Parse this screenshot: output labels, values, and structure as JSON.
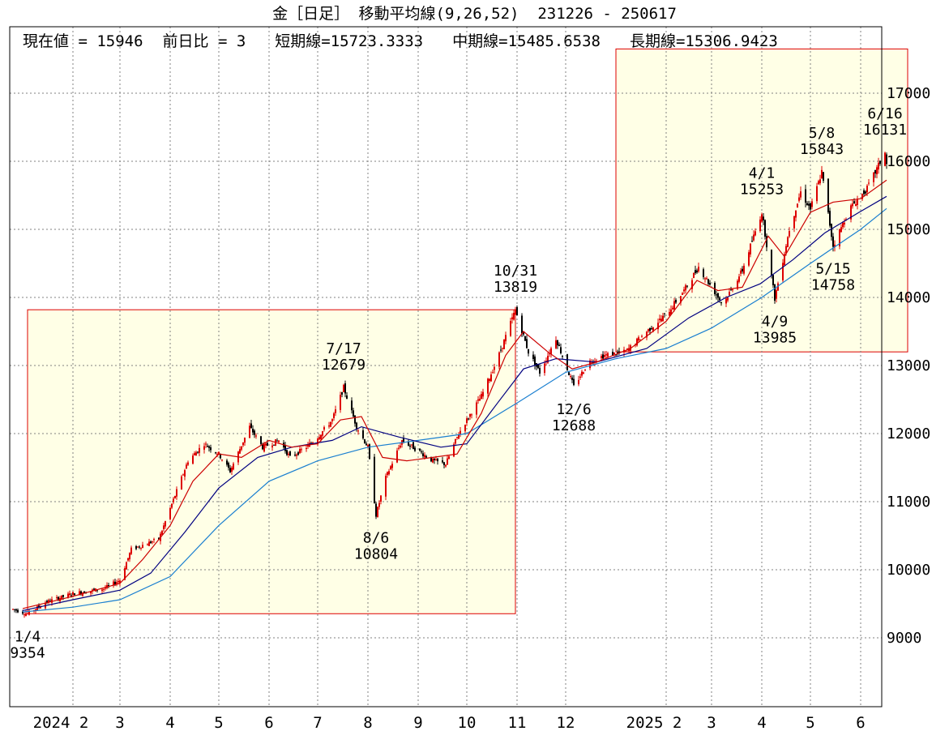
{
  "header": {
    "title": "金［日足］ 移動平均線(9,26,52)  231226 - 250617",
    "current_label": "現在値 = 15946",
    "change_label": "前日比 = 3",
    "short_ma_label": "短期線=15723.3333",
    "mid_ma_label": "中期線=15485.6538",
    "long_ma_label": "長期線=15306.9423"
  },
  "colors": {
    "candle": "#dd0000",
    "short_ma": "#cc0000",
    "mid_ma": "#000080",
    "long_ma": "#1a7fd0",
    "highlight_fill": "#ffffe6",
    "highlight_border": "#dd0000",
    "grid": "#808080"
  },
  "chart_data": {
    "type": "line",
    "subtype": "candlestick-with-moving-averages",
    "ylim": [
      8000,
      17900
    ],
    "y_ticks": [
      9000,
      10000,
      11000,
      12000,
      13000,
      14000,
      15000,
      16000,
      17000
    ],
    "x_ticks": [
      {
        "label": "2024 2",
        "date": "2024-02-01"
      },
      {
        "label": "3",
        "date": "2024-03-01"
      },
      {
        "label": "4",
        "date": "2024-04-01"
      },
      {
        "label": "5",
        "date": "2024-05-01"
      },
      {
        "label": "6",
        "date": "2024-06-01"
      },
      {
        "label": "7",
        "date": "2024-07-01"
      },
      {
        "label": "8",
        "date": "2024-08-01"
      },
      {
        "label": "9",
        "date": "2024-09-01"
      },
      {
        "label": "10",
        "date": "2024-10-01"
      },
      {
        "label": "11",
        "date": "2024-11-01"
      },
      {
        "label": "12",
        "date": "2024-12-01"
      },
      {
        "label": "2025 2",
        "date": "2025-02-01"
      },
      {
        "label": "3",
        "date": "2025-03-01"
      },
      {
        "label": "4",
        "date": "2025-04-01"
      },
      {
        "label": "5",
        "date": "2025-05-01"
      },
      {
        "label": "6",
        "date": "2025-06-01"
      }
    ],
    "price_path": [
      [
        "2023-12-26",
        9420
      ],
      [
        "2024-01-04",
        9354
      ],
      [
        "2024-01-15",
        9520
      ],
      [
        "2024-02-01",
        9650
      ],
      [
        "2024-02-20",
        9720
      ],
      [
        "2024-03-01",
        9850
      ],
      [
        "2024-03-08",
        10300
      ],
      [
        "2024-03-25",
        10450
      ],
      [
        "2024-04-01",
        10900
      ],
      [
        "2024-04-12",
        11600
      ],
      [
        "2024-04-22",
        11850
      ],
      [
        "2024-05-01",
        11700
      ],
      [
        "2024-05-08",
        11450
      ],
      [
        "2024-05-20",
        12100
      ],
      [
        "2024-05-28",
        11800
      ],
      [
        "2024-06-07",
        11900
      ],
      [
        "2024-06-14",
        11650
      ],
      [
        "2024-06-24",
        11800
      ],
      [
        "2024-07-01",
        11950
      ],
      [
        "2024-07-10",
        12200
      ],
      [
        "2024-07-17",
        12679
      ],
      [
        "2024-07-25",
        12100
      ],
      [
        "2024-08-01",
        11800
      ],
      [
        "2024-08-06",
        10804
      ],
      [
        "2024-08-12",
        11350
      ],
      [
        "2024-08-22",
        11900
      ],
      [
        "2024-09-01",
        11750
      ],
      [
        "2024-09-10",
        11600
      ],
      [
        "2024-09-18",
        11550
      ],
      [
        "2024-09-26",
        12000
      ],
      [
        "2024-10-01",
        12200
      ],
      [
        "2024-10-10",
        12550
      ],
      [
        "2024-10-20",
        13100
      ],
      [
        "2024-10-31",
        13819
      ],
      [
        "2024-11-08",
        13200
      ],
      [
        "2024-11-15",
        12900
      ],
      [
        "2024-11-25",
        13400
      ],
      [
        "2024-12-06",
        12688
      ],
      [
        "2024-12-15",
        13050
      ],
      [
        "2024-12-25",
        13150
      ],
      [
        "2025-01-07",
        13200
      ],
      [
        "2025-01-20",
        13500
      ],
      [
        "2025-02-01",
        13750
      ],
      [
        "2025-02-12",
        14100
      ],
      [
        "2025-02-21",
        14450
      ],
      [
        "2025-03-01",
        14150
      ],
      [
        "2025-03-08",
        13900
      ],
      [
        "2025-03-20",
        14400
      ],
      [
        "2025-04-01",
        15253
      ],
      [
        "2025-04-09",
        13985
      ],
      [
        "2025-04-18",
        15000
      ],
      [
        "2025-04-25",
        15550
      ],
      [
        "2025-05-01",
        15300
      ],
      [
        "2025-05-08",
        15843
      ],
      [
        "2025-05-15",
        14758
      ],
      [
        "2025-05-25",
        15300
      ],
      [
        "2025-06-05",
        15600
      ],
      [
        "2025-06-16",
        16131
      ],
      [
        "2025-06-17",
        15946
      ]
    ],
    "short_ma_path": [
      [
        "2024-01-01",
        9430
      ],
      [
        "2024-02-01",
        9610
      ],
      [
        "2024-03-01",
        9800
      ],
      [
        "2024-03-15",
        10150
      ],
      [
        "2024-04-01",
        10650
      ],
      [
        "2024-04-15",
        11300
      ],
      [
        "2024-05-01",
        11700
      ],
      [
        "2024-05-15",
        11650
      ],
      [
        "2024-06-01",
        11900
      ],
      [
        "2024-06-15",
        11800
      ],
      [
        "2024-07-01",
        11850
      ],
      [
        "2024-07-15",
        12200
      ],
      [
        "2024-07-28",
        12250
      ],
      [
        "2024-08-10",
        11650
      ],
      [
        "2024-08-25",
        11600
      ],
      [
        "2024-09-10",
        11650
      ],
      [
        "2024-09-25",
        11700
      ],
      [
        "2024-10-10",
        12300
      ],
      [
        "2024-10-25",
        13150
      ],
      [
        "2024-11-05",
        13500
      ],
      [
        "2024-11-20",
        13200
      ],
      [
        "2024-12-05",
        12950
      ],
      [
        "2024-12-20",
        13050
      ],
      [
        "2025-01-10",
        13250
      ],
      [
        "2025-02-01",
        13650
      ],
      [
        "2025-02-20",
        14250
      ],
      [
        "2025-03-05",
        14100
      ],
      [
        "2025-03-20",
        14150
      ],
      [
        "2025-04-05",
        14900
      ],
      [
        "2025-04-15",
        14600
      ],
      [
        "2025-05-01",
        15250
      ],
      [
        "2025-05-15",
        15400
      ],
      [
        "2025-06-01",
        15450
      ],
      [
        "2025-06-17",
        15723
      ]
    ],
    "mid_ma_path": [
      [
        "2024-01-01",
        9400
      ],
      [
        "2024-02-01",
        9560
      ],
      [
        "2024-03-01",
        9700
      ],
      [
        "2024-03-20",
        9950
      ],
      [
        "2024-04-10",
        10550
      ],
      [
        "2024-05-01",
        11200
      ],
      [
        "2024-05-25",
        11650
      ],
      [
        "2024-06-15",
        11800
      ],
      [
        "2024-07-10",
        11900
      ],
      [
        "2024-07-28",
        12100
      ],
      [
        "2024-08-20",
        11950
      ],
      [
        "2024-09-15",
        11800
      ],
      [
        "2024-10-01",
        11850
      ],
      [
        "2024-10-20",
        12450
      ],
      [
        "2024-11-05",
        12950
      ],
      [
        "2024-11-25",
        13100
      ],
      [
        "2024-12-20",
        13050
      ],
      [
        "2025-01-20",
        13250
      ],
      [
        "2025-02-15",
        13700
      ],
      [
        "2025-03-10",
        14000
      ],
      [
        "2025-03-31",
        14200
      ],
      [
        "2025-04-20",
        14550
      ],
      [
        "2025-05-10",
        14950
      ],
      [
        "2025-05-31",
        15250
      ],
      [
        "2025-06-17",
        15485
      ]
    ],
    "long_ma_path": [
      [
        "2024-01-01",
        9380
      ],
      [
        "2024-02-01",
        9450
      ],
      [
        "2024-03-01",
        9560
      ],
      [
        "2024-04-01",
        9900
      ],
      [
        "2024-05-01",
        10650
      ],
      [
        "2024-06-01",
        11300
      ],
      [
        "2024-07-01",
        11600
      ],
      [
        "2024-08-01",
        11800
      ],
      [
        "2024-09-01",
        11900
      ],
      [
        "2024-10-01",
        12000
      ],
      [
        "2024-11-01",
        12450
      ],
      [
        "2024-12-01",
        12900
      ],
      [
        "2025-01-01",
        13100
      ],
      [
        "2025-02-01",
        13250
      ],
      [
        "2025-03-01",
        13550
      ],
      [
        "2025-04-01",
        14000
      ],
      [
        "2025-05-01",
        14500
      ],
      [
        "2025-06-01",
        15000
      ],
      [
        "2025-06-17",
        15306
      ]
    ],
    "highlight_boxes": [
      {
        "from": "2024-01-04",
        "to": "2024-10-31",
        "low": 9354,
        "high": 13819
      },
      {
        "from": "2025-01-01",
        "to": "2025-06-30",
        "low": 13200,
        "high": 17650
      }
    ],
    "annotations": [
      {
        "date": "2024-01-04",
        "value": 9354,
        "date_label": "1/4",
        "value_label": "9354",
        "pos": "below"
      },
      {
        "date": "2024-07-17",
        "value": 12679,
        "date_label": "7/17",
        "value_label": "12679",
        "pos": "above"
      },
      {
        "date": "2024-08-06",
        "value": 10804,
        "date_label": "8/6",
        "value_label": "10804",
        "pos": "below"
      },
      {
        "date": "2024-10-31",
        "value": 13819,
        "date_label": "10/31",
        "value_label": "13819",
        "pos": "above"
      },
      {
        "date": "2024-12-06",
        "value": 12688,
        "date_label": "12/6",
        "value_label": "12688",
        "pos": "below"
      },
      {
        "date": "2025-04-01",
        "value": 15253,
        "date_label": "4/1",
        "value_label": "15253",
        "pos": "above"
      },
      {
        "date": "2025-04-09",
        "value": 13985,
        "date_label": "4/9",
        "value_label": "13985",
        "pos": "below"
      },
      {
        "date": "2025-05-08",
        "value": 15843,
        "date_label": "5/8",
        "value_label": "15843",
        "pos": "above"
      },
      {
        "date": "2025-05-15",
        "value": 14758,
        "date_label": "5/15",
        "value_label": "14758",
        "pos": "below"
      },
      {
        "date": "2025-06-16",
        "value": 16131,
        "date_label": "6/16",
        "value_label": "16131",
        "pos": "above"
      }
    ]
  }
}
